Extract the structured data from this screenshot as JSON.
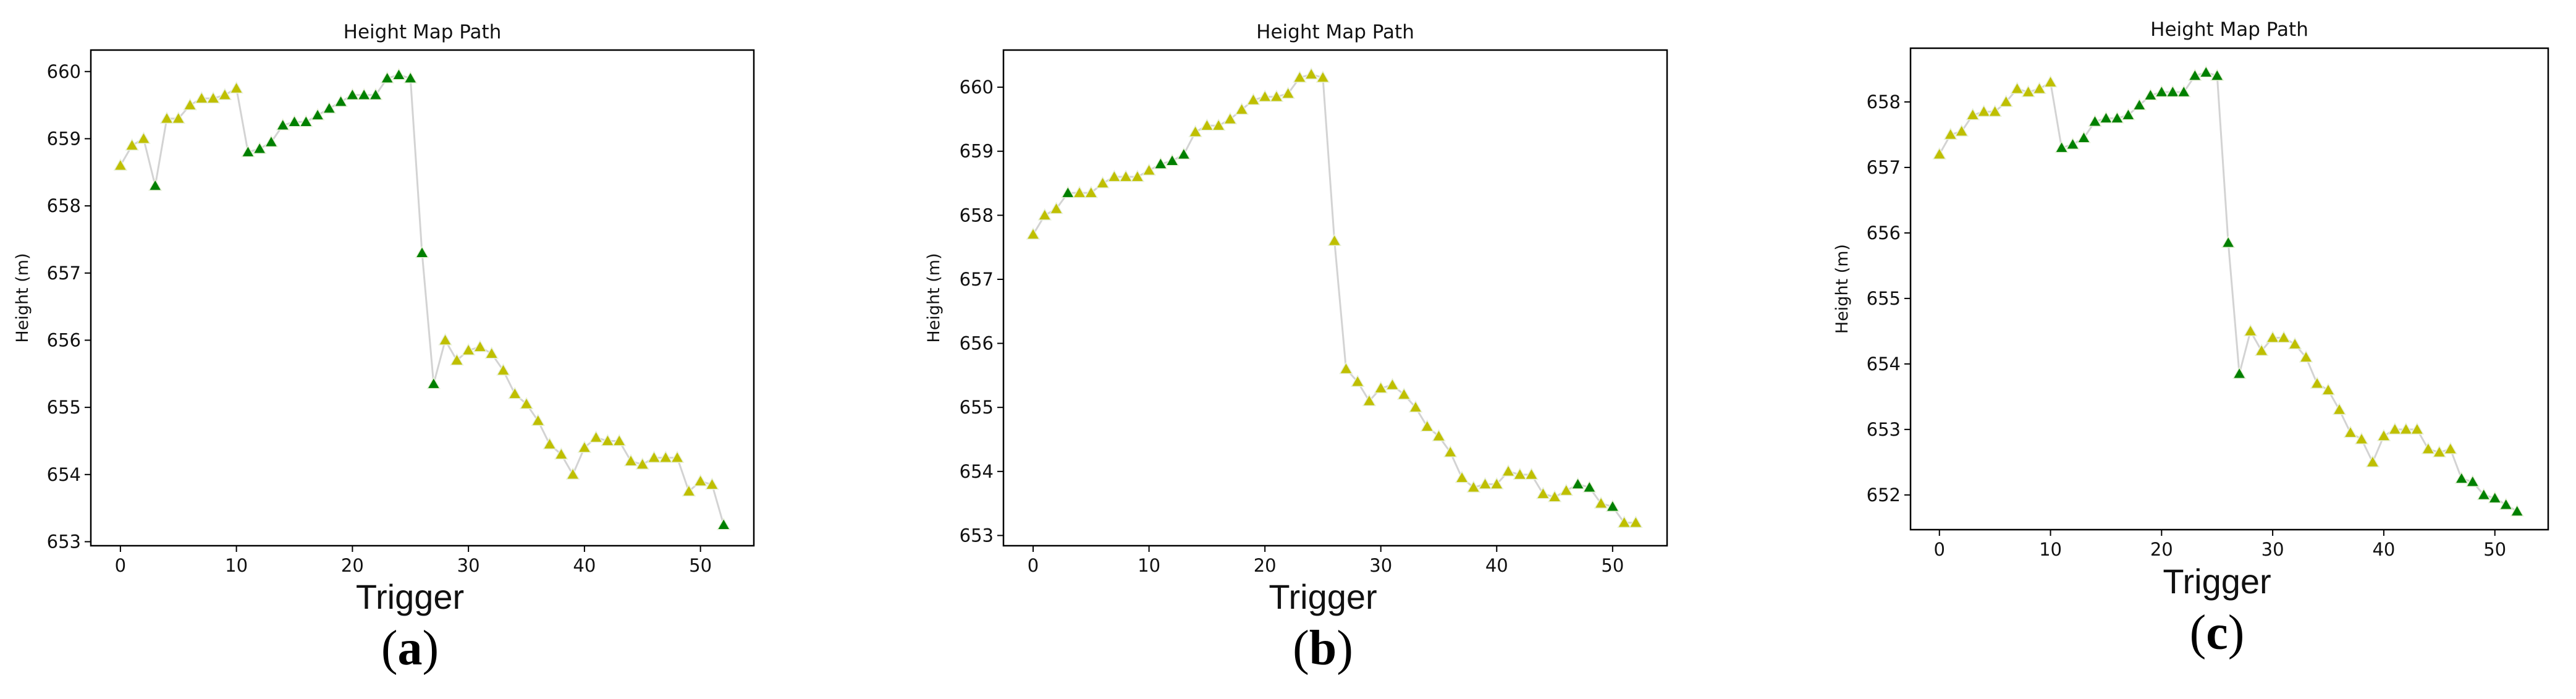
{
  "palette": {
    "y": "#bfbf00",
    "g": "#008000",
    "line": "#d3d3d3"
  },
  "chart_data": [
    {
      "type": "line",
      "panel_label": "a",
      "title": "Height Map Path",
      "xlabel": "Trigger",
      "ylabel": "Height (m)",
      "xlim": [
        -2.55,
        54.6
      ],
      "ylim": [
        652.94,
        660.32
      ],
      "xticks": [
        0,
        10,
        20,
        30,
        40,
        50
      ],
      "yticks": [
        653,
        654,
        655,
        656,
        657,
        658,
        659,
        660
      ],
      "grid": false,
      "marker": "triangle-up",
      "x": [
        0,
        1,
        2,
        3,
        4,
        5,
        6,
        7,
        8,
        9,
        10,
        11,
        12,
        13,
        14,
        15,
        16,
        17,
        18,
        19,
        20,
        21,
        22,
        23,
        24,
        25,
        26,
        27,
        28,
        29,
        30,
        31,
        32,
        33,
        34,
        35,
        36,
        37,
        38,
        39,
        40,
        41,
        42,
        43,
        44,
        45,
        46,
        47,
        48,
        49,
        50,
        51,
        52
      ],
      "y": [
        658.6,
        658.9,
        659.0,
        658.3,
        659.3,
        659.3,
        659.5,
        659.6,
        659.6,
        659.65,
        659.75,
        658.8,
        658.85,
        658.95,
        659.2,
        659.25,
        659.25,
        659.35,
        659.45,
        659.55,
        659.65,
        659.65,
        659.65,
        659.9,
        659.95,
        659.9,
        657.3,
        655.35,
        656.0,
        655.7,
        655.85,
        655.9,
        655.8,
        655.55,
        655.2,
        655.05,
        654.8,
        654.45,
        654.3,
        654.0,
        654.4,
        654.55,
        654.5,
        654.5,
        654.2,
        654.15,
        654.25,
        654.25,
        654.25,
        653.75,
        653.9,
        653.85,
        653.25
      ],
      "marker_colors": [
        "y",
        "y",
        "y",
        "g",
        "y",
        "y",
        "y",
        "y",
        "y",
        "y",
        "y",
        "g",
        "g",
        "g",
        "g",
        "g",
        "g",
        "g",
        "g",
        "g",
        "g",
        "g",
        "g",
        "g",
        "g",
        "g",
        "g",
        "g",
        "y",
        "y",
        "y",
        "y",
        "y",
        "y",
        "y",
        "y",
        "y",
        "y",
        "y",
        "y",
        "y",
        "y",
        "y",
        "y",
        "y",
        "y",
        "y",
        "y",
        "y",
        "y",
        "y",
        "y",
        "g"
      ]
    },
    {
      "type": "line",
      "panel_label": "b",
      "title": "Height Map Path",
      "xlabel": "Trigger",
      "ylabel": "Height (m)",
      "xlim": [
        -2.56,
        54.7
      ],
      "ylim": [
        652.84,
        660.58
      ],
      "xticks": [
        0,
        10,
        20,
        30,
        40,
        50
      ],
      "yticks": [
        653,
        654,
        655,
        656,
        657,
        658,
        659,
        660
      ],
      "grid": false,
      "marker": "triangle-up",
      "x": [
        0,
        1,
        2,
        3,
        4,
        5,
        6,
        7,
        8,
        9,
        10,
        11,
        12,
        13,
        14,
        15,
        16,
        17,
        18,
        19,
        20,
        21,
        22,
        23,
        24,
        25,
        26,
        27,
        28,
        29,
        30,
        31,
        32,
        33,
        34,
        35,
        36,
        37,
        38,
        39,
        40,
        41,
        42,
        43,
        44,
        45,
        46,
        47,
        48,
        49,
        50,
        51,
        52
      ],
      "y": [
        657.7,
        658.0,
        658.1,
        658.35,
        658.35,
        658.35,
        658.5,
        658.6,
        658.6,
        658.6,
        658.7,
        658.8,
        658.85,
        658.95,
        659.3,
        659.4,
        659.4,
        659.5,
        659.65,
        659.8,
        659.85,
        659.85,
        659.9,
        660.15,
        660.2,
        660.15,
        657.6,
        655.6,
        655.4,
        655.1,
        655.3,
        655.35,
        655.2,
        655.0,
        654.7,
        654.55,
        654.3,
        653.9,
        653.75,
        653.8,
        653.8,
        654.0,
        653.95,
        653.95,
        653.65,
        653.6,
        653.7,
        653.8,
        653.75,
        653.5,
        653.45,
        653.2,
        653.2
      ],
      "marker_colors": [
        "y",
        "y",
        "y",
        "g",
        "y",
        "y",
        "y",
        "y",
        "y",
        "y",
        "y",
        "g",
        "g",
        "g",
        "y",
        "y",
        "y",
        "y",
        "y",
        "y",
        "y",
        "y",
        "y",
        "y",
        "y",
        "y",
        "y",
        "y",
        "y",
        "y",
        "y",
        "y",
        "y",
        "y",
        "y",
        "y",
        "y",
        "y",
        "y",
        "y",
        "y",
        "y",
        "y",
        "y",
        "y",
        "y",
        "y",
        "g",
        "g",
        "y",
        "g",
        "y",
        "y"
      ]
    },
    {
      "type": "line",
      "panel_label": "c",
      "title": "Height Map Path",
      "xlabel": "Trigger",
      "ylabel": "Height (m)",
      "xlim": [
        -2.6,
        54.8
      ],
      "ylim": [
        651.47,
        658.82
      ],
      "xticks": [
        0,
        10,
        20,
        30,
        40,
        50
      ],
      "yticks": [
        652,
        653,
        654,
        655,
        656,
        657,
        658
      ],
      "grid": false,
      "marker": "triangle-up",
      "x": [
        0,
        1,
        2,
        3,
        4,
        5,
        6,
        7,
        8,
        9,
        10,
        11,
        12,
        13,
        14,
        15,
        16,
        17,
        18,
        19,
        20,
        21,
        22,
        23,
        24,
        25,
        26,
        27,
        28,
        29,
        30,
        31,
        32,
        33,
        34,
        35,
        36,
        37,
        38,
        39,
        40,
        41,
        42,
        43,
        44,
        45,
        46,
        47,
        48,
        49,
        50,
        51,
        52
      ],
      "y": [
        657.2,
        657.5,
        657.55,
        657.8,
        657.85,
        657.85,
        658.0,
        658.2,
        658.15,
        658.2,
        658.3,
        657.3,
        657.35,
        657.45,
        657.7,
        657.75,
        657.75,
        657.8,
        657.95,
        658.1,
        658.15,
        658.15,
        658.15,
        658.4,
        658.45,
        658.4,
        655.85,
        653.85,
        654.5,
        654.2,
        654.4,
        654.4,
        654.3,
        654.1,
        653.7,
        653.6,
        653.3,
        652.95,
        652.85,
        652.5,
        652.9,
        653.0,
        653.0,
        653.0,
        652.7,
        652.65,
        652.7,
        652.25,
        652.2,
        652.0,
        651.95,
        651.85,
        651.75
      ],
      "marker_colors": [
        "y",
        "y",
        "y",
        "y",
        "y",
        "y",
        "y",
        "y",
        "y",
        "y",
        "y",
        "g",
        "g",
        "g",
        "g",
        "g",
        "g",
        "g",
        "g",
        "g",
        "g",
        "g",
        "g",
        "g",
        "g",
        "g",
        "g",
        "g",
        "y",
        "y",
        "y",
        "y",
        "y",
        "y",
        "y",
        "y",
        "y",
        "y",
        "y",
        "y",
        "y",
        "y",
        "y",
        "y",
        "y",
        "y",
        "y",
        "g",
        "g",
        "g",
        "g",
        "g",
        "g"
      ]
    }
  ]
}
